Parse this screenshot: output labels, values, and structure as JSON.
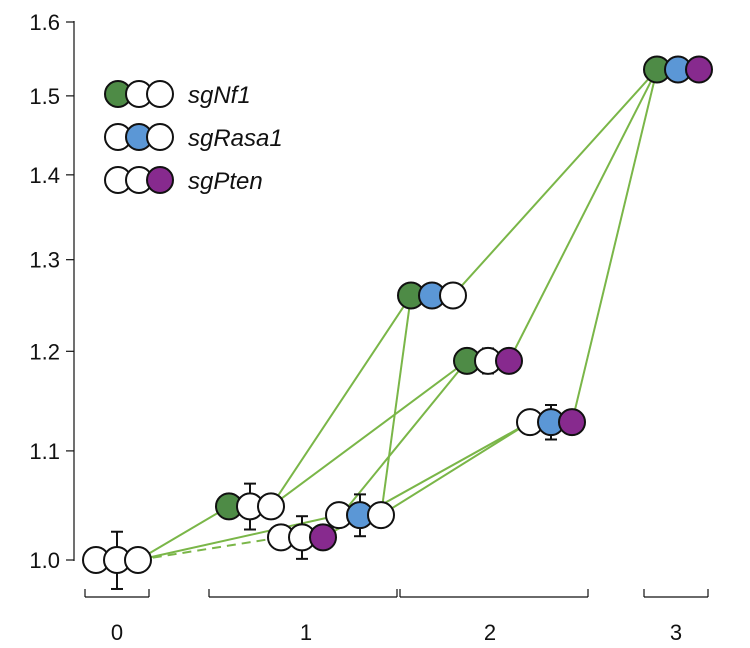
{
  "chart_data": {
    "type": "scatter",
    "title": "",
    "xlabel": "",
    "ylabel": "",
    "ylim": [
      1.0,
      1.6
    ],
    "y_scale": "log",
    "y_ticks": [
      "1.0",
      "1.1",
      "1.2",
      "1.3",
      "1.4",
      "1.5",
      "1.6"
    ],
    "x_ticks": [
      "0",
      "1",
      "2",
      "3"
    ],
    "legend": [
      {
        "label": "sgNf1",
        "dots": [
          "#4e8b46",
          "#ffffff",
          "#ffffff"
        ]
      },
      {
        "label": "sgRasa1",
        "dots": [
          "#ffffff",
          "#5b97d6",
          "#ffffff"
        ]
      },
      {
        "label": "sgPten",
        "dots": [
          "#ffffff",
          "#ffffff",
          "#872a8e"
        ]
      }
    ],
    "nodes": [
      {
        "id": "none",
        "group": 0,
        "y": 1.0,
        "err": 0.025,
        "dots": [
          "#ffffff",
          "#ffffff",
          "#ffffff"
        ]
      },
      {
        "id": "nf1",
        "group": 1,
        "y": 1.048,
        "err": 0.021,
        "dots": [
          "#4e8b46",
          "#ffffff",
          "#ffffff"
        ]
      },
      {
        "id": "pten",
        "group": 1,
        "y": 1.02,
        "err": 0.019,
        "dots": [
          "#ffffff",
          "#ffffff",
          "#872a8e"
        ]
      },
      {
        "id": "rasa1",
        "group": 1,
        "y": 1.04,
        "err": 0.019,
        "dots": [
          "#ffffff",
          "#5b97d6",
          "#ffffff"
        ]
      },
      {
        "id": "nf1_rasa1",
        "group": 2,
        "y": 1.26,
        "err": 0.0,
        "dots": [
          "#4e8b46",
          "#5b97d6",
          "#ffffff"
        ]
      },
      {
        "id": "nf1_pten",
        "group": 2,
        "y": 1.19,
        "err": 0.013,
        "dots": [
          "#4e8b46",
          "#ffffff",
          "#872a8e"
        ]
      },
      {
        "id": "rasa1_pten",
        "group": 2,
        "y": 1.128,
        "err": 0.017,
        "dots": [
          "#ffffff",
          "#5b97d6",
          "#872a8e"
        ]
      },
      {
        "id": "all",
        "group": 3,
        "y": 1.535,
        "err": 0.0,
        "dots": [
          "#4e8b46",
          "#5b97d6",
          "#872a8e"
        ]
      }
    ],
    "edges": [
      {
        "from": "none",
        "to": "nf1",
        "style": "solid"
      },
      {
        "from": "none",
        "to": "rasa1",
        "style": "solid"
      },
      {
        "from": "none",
        "to": "pten",
        "style": "dashed"
      },
      {
        "from": "nf1",
        "to": "nf1_rasa1",
        "style": "solid"
      },
      {
        "from": "nf1",
        "to": "nf1_pten",
        "style": "solid"
      },
      {
        "from": "rasa1",
        "to": "nf1_rasa1",
        "style": "solid"
      },
      {
        "from": "rasa1",
        "to": "rasa1_pten",
        "style": "solid"
      },
      {
        "from": "pten",
        "to": "nf1_pten",
        "style": "solid"
      },
      {
        "from": "pten",
        "to": "rasa1_pten",
        "style": "solid"
      },
      {
        "from": "nf1_rasa1",
        "to": "all",
        "style": "solid"
      },
      {
        "from": "nf1_pten",
        "to": "all",
        "style": "solid"
      },
      {
        "from": "rasa1_pten",
        "to": "all",
        "style": "solid"
      }
    ],
    "edge_color": "#7ab648",
    "dot_edge_color": "#111111",
    "grid": false
  }
}
